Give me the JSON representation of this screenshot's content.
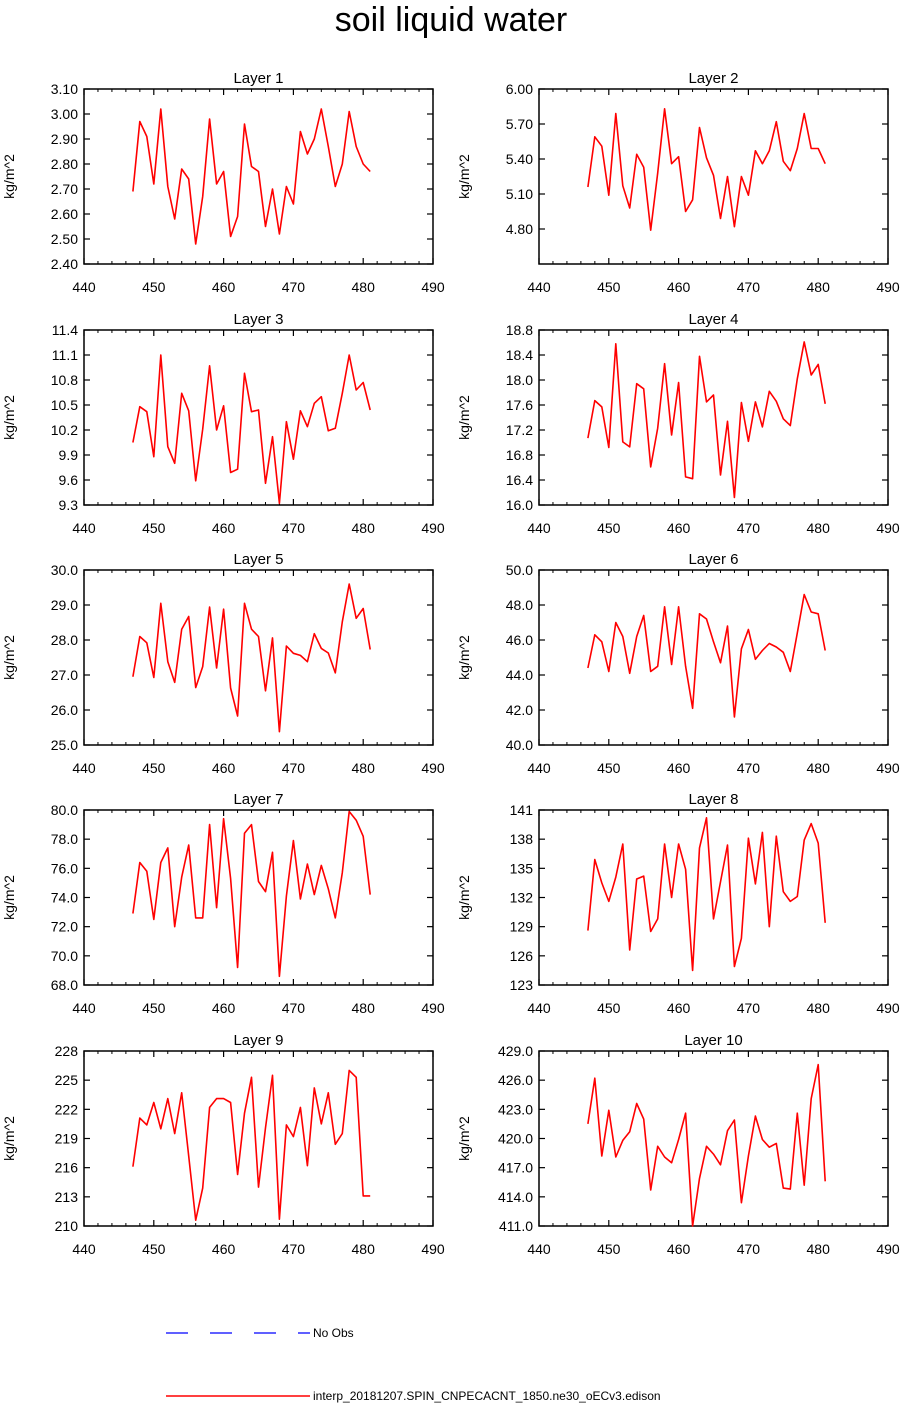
{
  "title": "soil liquid water",
  "colors": {
    "model": "#ff0000",
    "obs": "#0000ff",
    "axis": "#000000"
  },
  "legend": {
    "obs_label": "No Obs",
    "model_label": "interp_20181207.SPIN_CNPECACNT_1850.ne30_oECv3.edison"
  },
  "chart_data": [
    {
      "type": "line",
      "title": "Layer 1",
      "ylabel": "kg/m^2",
      "xlim": [
        440,
        490
      ],
      "xticks": [
        "440",
        "450",
        "460",
        "470",
        "480",
        "490"
      ],
      "ylim": [
        2.4,
        3.1
      ],
      "yticks": [
        "2.40",
        "2.50",
        "2.60",
        "2.70",
        "2.80",
        "2.90",
        "3.00",
        "3.10"
      ],
      "series": [
        {
          "x": [
            447,
            448,
            449,
            450,
            451,
            452,
            453,
            454,
            455,
            456,
            457,
            458,
            459,
            460,
            461,
            462,
            463,
            464,
            465,
            466,
            467,
            468,
            469,
            470,
            471,
            472,
            473,
            474,
            475,
            476,
            477,
            478,
            479,
            480,
            481
          ],
          "values": [
            2.69,
            2.97,
            2.91,
            2.72,
            3.02,
            2.71,
            2.58,
            2.78,
            2.74,
            2.48,
            2.67,
            2.98,
            2.72,
            2.77,
            2.51,
            2.59,
            2.96,
            2.79,
            2.77,
            2.55,
            2.7,
            2.52,
            2.71,
            2.64,
            2.93,
            2.84,
            2.9,
            3.02,
            2.87,
            2.71,
            2.8,
            3.01,
            2.87,
            2.8,
            2.77
          ]
        }
      ]
    },
    {
      "type": "line",
      "title": "Layer 2",
      "ylabel": "kg/m^2",
      "xlim": [
        440,
        490
      ],
      "xticks": [
        "440",
        "450",
        "460",
        "470",
        "480",
        "490"
      ],
      "ylim": [
        4.5,
        6.0
      ],
      "yticks": [
        "4.80",
        "5.10",
        "5.40",
        "5.70",
        "6.00"
      ],
      "series": [
        {
          "x": [
            447,
            448,
            449,
            450,
            451,
            452,
            453,
            454,
            455,
            456,
            457,
            458,
            459,
            460,
            461,
            462,
            463,
            464,
            465,
            466,
            467,
            468,
            469,
            470,
            471,
            472,
            473,
            474,
            475,
            476,
            477,
            478,
            479,
            480,
            481
          ],
          "values": [
            5.16,
            5.59,
            5.51,
            5.09,
            5.79,
            5.17,
            4.98,
            5.44,
            5.33,
            4.79,
            5.28,
            5.83,
            5.36,
            5.42,
            4.95,
            5.05,
            5.67,
            5.41,
            5.26,
            4.89,
            5.25,
            4.82,
            5.25,
            5.09,
            5.47,
            5.36,
            5.47,
            5.72,
            5.38,
            5.3,
            5.49,
            5.79,
            5.49,
            5.49,
            5.36
          ]
        }
      ]
    },
    {
      "type": "line",
      "title": "Layer 3",
      "ylabel": "kg/m^2",
      "xlim": [
        440,
        490
      ],
      "xticks": [
        "440",
        "450",
        "460",
        "470",
        "480",
        "490"
      ],
      "ylim": [
        9.3,
        11.4
      ],
      "yticks": [
        "9.3",
        "9.6",
        "9.9",
        "10.2",
        "10.5",
        "10.8",
        "11.1",
        "11.4"
      ],
      "series": [
        {
          "x": [
            447,
            448,
            449,
            450,
            451,
            452,
            453,
            454,
            455,
            456,
            457,
            458,
            459,
            460,
            461,
            462,
            463,
            464,
            465,
            466,
            467,
            468,
            469,
            470,
            471,
            472,
            473,
            474,
            475,
            476,
            477,
            478,
            479,
            480,
            481
          ],
          "values": [
            10.05,
            10.48,
            10.42,
            9.88,
            11.1,
            10.0,
            9.8,
            10.64,
            10.43,
            9.59,
            10.21,
            10.97,
            10.2,
            10.49,
            9.69,
            9.73,
            10.88,
            10.42,
            10.44,
            9.56,
            10.12,
            9.32,
            10.3,
            9.85,
            10.43,
            10.24,
            10.52,
            10.6,
            10.19,
            10.22,
            10.64,
            11.1,
            10.68,
            10.77,
            10.44
          ]
        }
      ]
    },
    {
      "type": "line",
      "title": "Layer 4",
      "ylabel": "kg/m^2",
      "xlim": [
        440,
        490
      ],
      "xticks": [
        "440",
        "450",
        "460",
        "470",
        "480",
        "490"
      ],
      "ylim": [
        16.0,
        18.8
      ],
      "yticks": [
        "16.0",
        "16.4",
        "16.8",
        "17.2",
        "17.6",
        "18.0",
        "18.4",
        "18.8"
      ],
      "series": [
        {
          "x": [
            447,
            448,
            449,
            450,
            451,
            452,
            453,
            454,
            455,
            456,
            457,
            458,
            459,
            460,
            461,
            462,
            463,
            464,
            465,
            466,
            467,
            468,
            469,
            470,
            471,
            472,
            473,
            474,
            475,
            476,
            477,
            478,
            479,
            480,
            481
          ],
          "values": [
            17.07,
            17.67,
            17.57,
            16.92,
            18.58,
            17.01,
            16.93,
            17.94,
            17.86,
            16.61,
            17.23,
            18.26,
            17.12,
            17.96,
            16.45,
            16.42,
            18.38,
            17.65,
            17.76,
            16.48,
            17.34,
            16.12,
            17.64,
            17.02,
            17.65,
            17.25,
            17.82,
            17.66,
            17.38,
            17.27,
            18.02,
            18.61,
            18.08,
            18.25,
            17.62
          ]
        }
      ]
    },
    {
      "type": "line",
      "title": "Layer 5",
      "ylabel": "kg/m^2",
      "xlim": [
        440,
        490
      ],
      "xticks": [
        "440",
        "450",
        "460",
        "470",
        "480",
        "490"
      ],
      "ylim": [
        25.0,
        30.0
      ],
      "yticks": [
        "25.0",
        "26.0",
        "27.0",
        "28.0",
        "29.0",
        "30.0"
      ],
      "series": [
        {
          "x": [
            447,
            448,
            449,
            450,
            451,
            452,
            453,
            454,
            455,
            456,
            457,
            458,
            459,
            460,
            461,
            462,
            463,
            464,
            465,
            466,
            467,
            468,
            469,
            470,
            471,
            472,
            473,
            474,
            475,
            476,
            477,
            478,
            479,
            480,
            481
          ],
          "values": [
            26.95,
            28.1,
            27.92,
            26.93,
            29.05,
            27.38,
            26.79,
            28.31,
            28.67,
            26.64,
            27.24,
            28.94,
            27.2,
            28.88,
            26.63,
            25.83,
            29.05,
            28.31,
            28.1,
            26.55,
            28.06,
            25.38,
            27.83,
            27.62,
            27.56,
            27.38,
            28.18,
            27.76,
            27.63,
            27.06,
            28.52,
            29.6,
            28.62,
            28.9,
            27.73
          ]
        }
      ]
    },
    {
      "type": "line",
      "title": "Layer 6",
      "ylabel": "kg/m^2",
      "xlim": [
        440,
        490
      ],
      "xticks": [
        "440",
        "450",
        "460",
        "470",
        "480",
        "490"
      ],
      "ylim": [
        40.0,
        50.0
      ],
      "yticks": [
        "40.0",
        "42.0",
        "44.0",
        "46.0",
        "48.0",
        "50.0"
      ],
      "series": [
        {
          "x": [
            447,
            448,
            449,
            450,
            451,
            452,
            453,
            454,
            455,
            456,
            457,
            458,
            459,
            460,
            461,
            462,
            463,
            464,
            465,
            466,
            467,
            468,
            469,
            470,
            471,
            472,
            473,
            474,
            475,
            476,
            477,
            478,
            479,
            480,
            481
          ],
          "values": [
            44.4,
            46.3,
            45.9,
            44.2,
            47.0,
            46.2,
            44.1,
            46.2,
            47.4,
            44.2,
            44.5,
            47.9,
            44.6,
            47.9,
            44.5,
            42.1,
            47.5,
            47.2,
            45.9,
            44.7,
            46.8,
            41.6,
            45.5,
            46.6,
            44.9,
            45.4,
            45.8,
            45.6,
            45.3,
            44.2,
            46.4,
            48.6,
            47.6,
            47.5,
            45.4
          ]
        }
      ]
    },
    {
      "type": "line",
      "title": "Layer 7",
      "ylabel": "kg/m^2",
      "xlim": [
        440,
        490
      ],
      "xticks": [
        "440",
        "450",
        "460",
        "470",
        "480",
        "490"
      ],
      "ylim": [
        68.0,
        80.0
      ],
      "yticks": [
        "68.0",
        "70.0",
        "72.0",
        "74.0",
        "76.0",
        "78.0",
        "80.0"
      ],
      "series": [
        {
          "x": [
            447,
            448,
            449,
            450,
            451,
            452,
            453,
            454,
            455,
            456,
            457,
            458,
            459,
            460,
            461,
            462,
            463,
            464,
            465,
            466,
            467,
            468,
            469,
            470,
            471,
            472,
            473,
            474,
            475,
            476,
            477,
            478,
            479,
            480,
            481
          ],
          "values": [
            72.9,
            76.4,
            75.8,
            72.5,
            76.4,
            77.4,
            72.0,
            75.4,
            77.6,
            72.6,
            72.6,
            79.0,
            73.3,
            79.4,
            75.3,
            69.2,
            78.4,
            79.0,
            75.1,
            74.4,
            77.1,
            68.6,
            74.1,
            77.9,
            73.9,
            76.3,
            74.2,
            76.2,
            74.6,
            72.6,
            75.7,
            79.9,
            79.3,
            78.2,
            74.2
          ]
        }
      ]
    },
    {
      "type": "line",
      "title": "Layer 8",
      "ylabel": "kg/m^2",
      "xlim": [
        440,
        490
      ],
      "xticks": [
        "440",
        "450",
        "460",
        "470",
        "480",
        "490"
      ],
      "ylim": [
        123,
        141
      ],
      "yticks": [
        "123",
        "126",
        "129",
        "132",
        "135",
        "138",
        "141"
      ],
      "series": [
        {
          "x": [
            447,
            448,
            449,
            450,
            451,
            452,
            453,
            454,
            455,
            456,
            457,
            458,
            459,
            460,
            461,
            462,
            463,
            464,
            465,
            466,
            467,
            468,
            469,
            470,
            471,
            472,
            473,
            474,
            475,
            476,
            477,
            478,
            479,
            480,
            481
          ],
          "values": [
            128.6,
            135.9,
            133.5,
            131.6,
            134.1,
            137.5,
            126.6,
            133.9,
            134.2,
            128.5,
            129.8,
            137.5,
            132.0,
            137.5,
            134.9,
            124.5,
            137.1,
            140.2,
            129.8,
            133.6,
            137.4,
            124.9,
            127.8,
            138.1,
            133.4,
            138.7,
            129.0,
            138.3,
            132.6,
            131.6,
            132.1,
            137.9,
            139.6,
            137.6,
            129.4
          ]
        }
      ]
    },
    {
      "type": "line",
      "title": "Layer 9",
      "ylabel": "kg/m^2",
      "xlim": [
        440,
        490
      ],
      "xticks": [
        "440",
        "450",
        "460",
        "470",
        "480",
        "490"
      ],
      "ylim": [
        210,
        228
      ],
      "yticks": [
        "210",
        "213",
        "216",
        "219",
        "222",
        "225",
        "228"
      ],
      "series": [
        {
          "x": [
            447,
            448,
            449,
            450,
            451,
            452,
            453,
            454,
            455,
            456,
            457,
            458,
            459,
            460,
            461,
            462,
            463,
            464,
            465,
            466,
            467,
            468,
            469,
            470,
            471,
            472,
            473,
            474,
            475,
            476,
            477,
            478,
            479,
            480,
            481
          ],
          "values": [
            216.1,
            221.1,
            220.4,
            222.7,
            220.0,
            223.1,
            219.5,
            223.7,
            217.2,
            210.6,
            213.9,
            222.2,
            223.1,
            223.1,
            222.7,
            215.3,
            221.6,
            225.3,
            214.0,
            220.1,
            225.5,
            210.7,
            220.4,
            219.2,
            222.2,
            216.2,
            224.2,
            220.5,
            223.7,
            218.4,
            219.5,
            226.0,
            225.3,
            213.1,
            213.1
          ]
        }
      ]
    },
    {
      "type": "line",
      "title": "Layer 10",
      "ylabel": "kg/m^2",
      "xlim": [
        440,
        490
      ],
      "xticks": [
        "440",
        "450",
        "460",
        "470",
        "480",
        "490"
      ],
      "ylim": [
        411.0,
        429.0
      ],
      "yticks": [
        "411.0",
        "414.0",
        "417.0",
        "420.0",
        "423.0",
        "426.0",
        "429.0"
      ],
      "series": [
        {
          "x": [
            447,
            448,
            449,
            450,
            451,
            452,
            453,
            454,
            455,
            456,
            457,
            458,
            459,
            460,
            461,
            462,
            463,
            464,
            465,
            466,
            467,
            468,
            469,
            470,
            471,
            472,
            473,
            474,
            475,
            476,
            477,
            478,
            479,
            480,
            481
          ],
          "values": [
            421.5,
            426.2,
            418.2,
            422.9,
            418.1,
            419.8,
            420.7,
            423.6,
            422.0,
            414.7,
            419.2,
            418.1,
            417.5,
            419.9,
            422.6,
            411.0,
            415.9,
            419.2,
            418.4,
            417.3,
            420.8,
            421.9,
            413.4,
            418.2,
            422.3,
            419.9,
            419.1,
            419.5,
            414.9,
            414.8,
            422.6,
            415.2,
            424.1,
            427.6,
            415.6
          ]
        }
      ]
    }
  ]
}
